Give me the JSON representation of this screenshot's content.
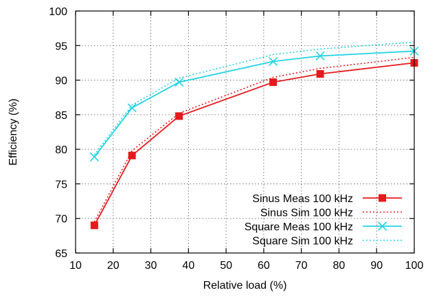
{
  "chart_data": {
    "type": "line",
    "xlabel": "Relative load (%)",
    "ylabel": "Efficiency (%)",
    "xlim": [
      10,
      100
    ],
    "ylim": [
      65,
      100
    ],
    "xticks": [
      10,
      20,
      30,
      40,
      50,
      60,
      70,
      80,
      90,
      100
    ],
    "yticks": [
      65,
      70,
      75,
      80,
      85,
      90,
      95,
      100
    ],
    "grid": true,
    "legend_position": "bottom-right",
    "series": [
      {
        "name": "Sinus Meas 100 kHz",
        "color": "#e41a1c",
        "line": "solid",
        "marker": "square",
        "x": [
          15,
          25,
          37.5,
          62.5,
          75,
          100
        ],
        "y": [
          69.0,
          79.1,
          84.8,
          89.7,
          90.9,
          92.5
        ]
      },
      {
        "name": "Sinus Sim 100 kHz",
        "color": "#e41a1c",
        "line": "dotted",
        "marker": "none",
        "x": [
          15,
          25,
          37.5,
          62.5,
          75,
          100
        ],
        "y": [
          69.5,
          79.8,
          85.2,
          90.4,
          91.7,
          93.3
        ]
      },
      {
        "name": "Square Meas 100 kHz",
        "color": "#22d3e6",
        "line": "solid",
        "marker": "x",
        "x": [
          15,
          25,
          37.5,
          62.5,
          75,
          100
        ],
        "y": [
          78.9,
          86.0,
          89.7,
          92.7,
          93.5,
          94.2
        ]
      },
      {
        "name": "Square Sim 100 kHz",
        "color": "#22d3e6",
        "line": "dotted",
        "marker": "none",
        "x": [
          15,
          25,
          37.5,
          62.5,
          75,
          100
        ],
        "y": [
          79.2,
          86.4,
          90.3,
          93.7,
          94.5,
          95.5
        ]
      }
    ]
  }
}
